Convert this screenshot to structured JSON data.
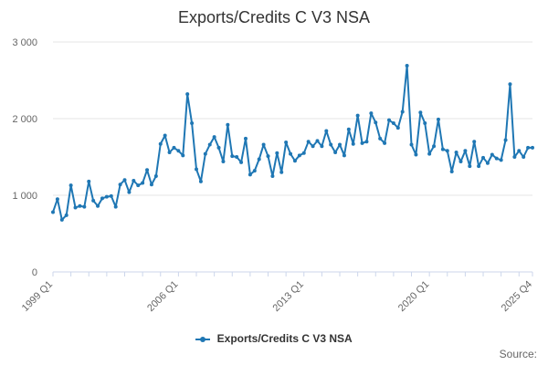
{
  "chart_data": {
    "type": "line",
    "title": "Exports/Credits C V3 NSA",
    "xlabel": "",
    "ylabel": "",
    "ylim": [
      0,
      3000
    ],
    "y_ticks": [
      "0",
      "1 000",
      "2 000",
      "3 000"
    ],
    "y_tick_values": [
      0,
      1000,
      2000,
      3000
    ],
    "x_tick_labels": [
      {
        "label": "1999 Q1",
        "index": 0
      },
      {
        "label": "2006 Q1",
        "index": 28
      },
      {
        "label": "2013 Q1",
        "index": 56
      },
      {
        "label": "2020 Q1",
        "index": 84
      },
      {
        "label": "2025 Q4",
        "index": 107
      }
    ],
    "grid": true,
    "legend_position": "bottom",
    "series": [
      {
        "name": "Exports/Credits C V3 NSA",
        "color": "#1f77b4",
        "values": [
          780,
          950,
          680,
          740,
          1130,
          840,
          860,
          850,
          1180,
          930,
          860,
          960,
          980,
          990,
          850,
          1140,
          1200,
          1040,
          1190,
          1130,
          1160,
          1330,
          1140,
          1250,
          1670,
          1780,
          1560,
          1620,
          1580,
          1520,
          2320,
          1940,
          1340,
          1180,
          1540,
          1660,
          1760,
          1620,
          1440,
          1920,
          1510,
          1500,
          1430,
          1740,
          1270,
          1320,
          1470,
          1660,
          1510,
          1250,
          1550,
          1300,
          1690,
          1540,
          1450,
          1520,
          1550,
          1700,
          1640,
          1710,
          1640,
          1840,
          1660,
          1560,
          1660,
          1520,
          1860,
          1670,
          2040,
          1680,
          1700,
          2070,
          1950,
          1740,
          1680,
          1980,
          1940,
          1880,
          2090,
          2690,
          1660,
          1530,
          2080,
          1940,
          1540,
          1640,
          1990,
          1600,
          1580,
          1310,
          1560,
          1440,
          1580,
          1380,
          1700,
          1380,
          1490,
          1420,
          1530,
          1480,
          1460,
          1720,
          2450,
          1500,
          1580,
          1500,
          1620,
          1620
        ]
      }
    ]
  },
  "legend": {
    "label": "Exports/Credits C V3 NSA",
    "color": "#1f77b4"
  },
  "source_label": "Source:"
}
